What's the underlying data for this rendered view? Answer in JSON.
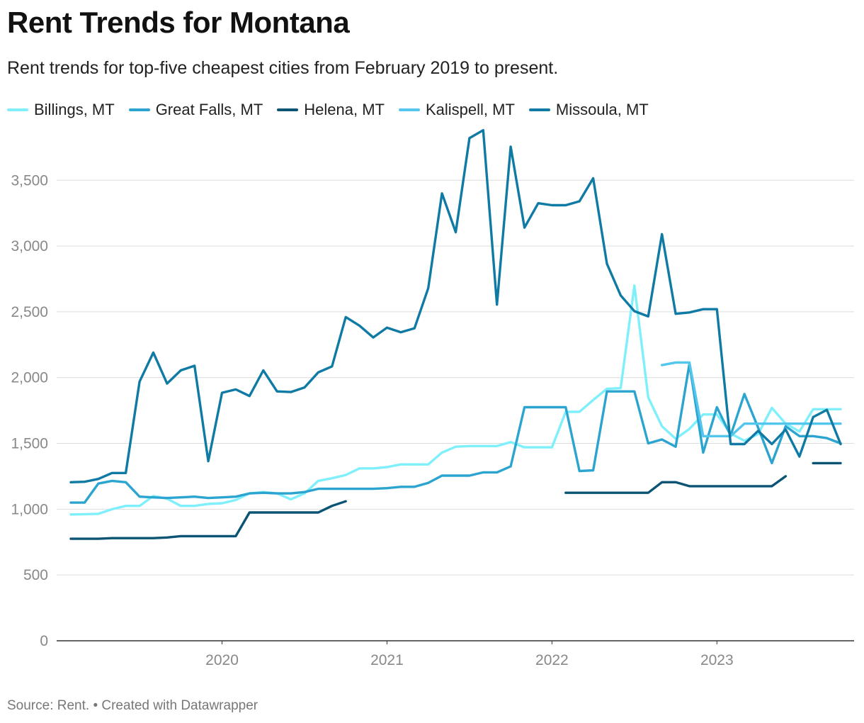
{
  "header": {
    "title": "Rent Trends for Montana",
    "subtitle": "Rent trends for top-five cheapest cities from February 2019 to present."
  },
  "footer": {
    "source": "Source: Rent. • Created with Datawrapper"
  },
  "chart_data": {
    "type": "line",
    "title": "Rent Trends for Montana",
    "subtitle": "Rent trends for top-five cheapest cities from February 2019 to present.",
    "xlabel": "",
    "ylabel": "",
    "x_start": "2019-02",
    "x_end": "2023-10",
    "ylim": [
      0,
      3900
    ],
    "y_ticks": [
      0,
      500,
      1000,
      1500,
      2000,
      2500,
      3000,
      3500
    ],
    "y_tick_labels": [
      "0",
      "500",
      "1,000",
      "1,500",
      "2,000",
      "2,500",
      "3,000",
      "3,500"
    ],
    "x_ticks": [
      {
        "label": "2020",
        "x": "2020-01"
      },
      {
        "label": "2021",
        "x": "2021-01"
      },
      {
        "label": "2022",
        "x": "2022-01"
      },
      {
        "label": "2023",
        "x": "2023-01"
      }
    ],
    "grid": "horizontal",
    "legend_position": "top",
    "x": [
      "2019-02",
      "2019-03",
      "2019-04",
      "2019-05",
      "2019-06",
      "2019-07",
      "2019-08",
      "2019-09",
      "2019-10",
      "2019-11",
      "2019-12",
      "2020-01",
      "2020-02",
      "2020-03",
      "2020-04",
      "2020-05",
      "2020-06",
      "2020-07",
      "2020-08",
      "2020-09",
      "2020-10",
      "2020-11",
      "2020-12",
      "2021-01",
      "2021-02",
      "2021-03",
      "2021-04",
      "2021-05",
      "2021-06",
      "2021-07",
      "2021-08",
      "2021-09",
      "2021-10",
      "2021-11",
      "2021-12",
      "2022-01",
      "2022-02",
      "2022-03",
      "2022-04",
      "2022-05",
      "2022-06",
      "2022-07",
      "2022-08",
      "2022-09",
      "2022-10",
      "2022-11",
      "2022-12",
      "2023-01",
      "2023-02",
      "2023-03",
      "2023-04",
      "2023-05",
      "2023-06",
      "2023-07",
      "2023-08",
      "2023-09",
      "2023-10"
    ],
    "series": [
      {
        "name": "Billings, MT",
        "color": "#7ff0fb",
        "values": [
          960,
          962,
          965,
          1000,
          1025,
          1025,
          1100,
          1080,
          1025,
          1025,
          1040,
          1045,
          1070,
          1120,
          1130,
          1120,
          1075,
          1120,
          1215,
          1235,
          1260,
          1310,
          1310,
          1320,
          1340,
          1340,
          1340,
          1430,
          1475,
          1480,
          1480,
          1480,
          1510,
          1470,
          1470,
          1470,
          1740,
          1740,
          1830,
          1915,
          1920,
          2700,
          1850,
          1630,
          1535,
          1610,
          1720,
          1720,
          1575,
          1520,
          1570,
          1770,
          1650,
          1590,
          1760,
          1760,
          1760
        ]
      },
      {
        "name": "Great Falls, MT",
        "color": "#2ba5cf",
        "values": [
          1050,
          1050,
          1195,
          1215,
          1205,
          1095,
          1090,
          1085,
          1090,
          1095,
          1085,
          1090,
          1095,
          1120,
          1125,
          1120,
          1120,
          1130,
          1155,
          1155,
          1155,
          1155,
          1155,
          1160,
          1170,
          1170,
          1200,
          1255,
          1255,
          1255,
          1280,
          1280,
          1325,
          1775,
          1775,
          1775,
          1775,
          1290,
          1295,
          1895,
          1895,
          1895,
          1500,
          1530,
          1475,
          2105,
          1430,
          1775,
          1560,
          1875,
          1620,
          1350,
          1630,
          1555,
          1555,
          1540,
          1500
        ]
      },
      {
        "name": "Helena, MT",
        "color": "#0b5474",
        "values": [
          775,
          775,
          775,
          780,
          780,
          780,
          780,
          785,
          795,
          795,
          795,
          795,
          795,
          975,
          975,
          975,
          975,
          975,
          975,
          1025,
          1060,
          null,
          null,
          null,
          null,
          null,
          null,
          null,
          null,
          null,
          null,
          null,
          null,
          null,
          null,
          null,
          1125,
          1125,
          1125,
          1125,
          1125,
          1125,
          1125,
          1205,
          1205,
          1175,
          1175,
          1175,
          1175,
          1175,
          1175,
          1175,
          1250,
          null,
          1350,
          1350,
          1350
        ]
      },
      {
        "name": "Kalispell, MT",
        "color": "#52c6ec",
        "values": [
          null,
          null,
          null,
          null,
          null,
          null,
          null,
          null,
          null,
          null,
          null,
          null,
          null,
          null,
          null,
          null,
          null,
          null,
          null,
          null,
          null,
          null,
          null,
          null,
          null,
          null,
          null,
          null,
          null,
          null,
          null,
          null,
          null,
          null,
          null,
          null,
          null,
          null,
          null,
          null,
          null,
          null,
          null,
          2095,
          2115,
          2115,
          1555,
          1555,
          1555,
          1650,
          1650,
          1650,
          1650,
          1650,
          1650,
          1650,
          1650
        ]
      },
      {
        "name": "Missoula, MT",
        "color": "#0f7aa4",
        "values": [
          1205,
          1208,
          1230,
          1275,
          1275,
          1970,
          2190,
          1955,
          2055,
          2090,
          1365,
          1885,
          1910,
          1860,
          2055,
          1895,
          1890,
          1925,
          2040,
          2085,
          2460,
          2395,
          2305,
          2380,
          2345,
          2375,
          2680,
          3400,
          3105,
          3820,
          3880,
          2555,
          3755,
          3140,
          3325,
          3310,
          3310,
          3340,
          3515,
          2865,
          2625,
          2505,
          2465,
          3090,
          2485,
          2495,
          2520,
          2520,
          1495,
          1495,
          1595,
          1495,
          1605,
          1400,
          1700,
          1755,
          1495
        ]
      }
    ]
  }
}
